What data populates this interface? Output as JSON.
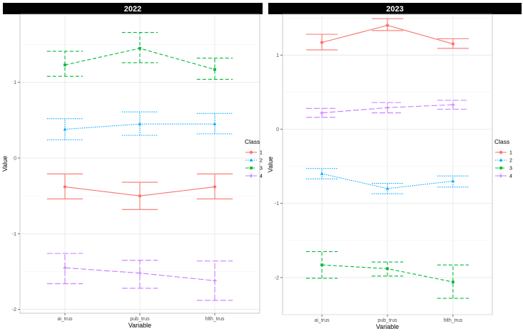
{
  "chart_data": [
    {
      "type": "line",
      "title": "2022",
      "xlabel": "Variable",
      "ylabel": "Value",
      "categories": [
        "ai_trus",
        "pub_trus",
        "hlth_trus"
      ],
      "ylim": [
        -2.05,
        1.9
      ],
      "yticks": [
        -2,
        -1,
        0,
        1
      ],
      "legend": {
        "title": "Class",
        "position": "right"
      },
      "series": [
        {
          "name": "1",
          "color": "#F8766D",
          "dash": "",
          "marker": "circle",
          "values": [
            -0.38,
            -0.5,
            -0.38
          ],
          "lower": [
            -0.54,
            -0.68,
            -0.54
          ],
          "upper": [
            -0.21,
            -0.32,
            -0.21
          ]
        },
        {
          "name": "2",
          "color": "#00A9FF",
          "dash": "1.5,1.5",
          "marker": "triangle",
          "values": [
            0.38,
            0.45,
            0.45
          ],
          "lower": [
            0.24,
            0.3,
            0.32
          ],
          "upper": [
            0.52,
            0.61,
            0.59
          ]
        },
        {
          "name": "3",
          "color": "#00BA38",
          "dash": "5,3",
          "marker": "square",
          "values": [
            1.23,
            1.45,
            1.17
          ],
          "lower": [
            1.08,
            1.26,
            1.04
          ],
          "upper": [
            1.41,
            1.66,
            1.32
          ]
        },
        {
          "name": "4",
          "color": "#C77CFF",
          "dash": "8,3",
          "marker": "plus",
          "values": [
            -1.45,
            -1.52,
            -1.62
          ],
          "lower": [
            -1.66,
            -1.72,
            -1.88
          ],
          "upper": [
            -1.26,
            -1.35,
            -1.36
          ]
        }
      ]
    },
    {
      "type": "line",
      "title": "2023",
      "xlabel": "Variable",
      "ylabel": "Value",
      "categories": [
        "ai_trus",
        "pub_trus",
        "hlth_trus"
      ],
      "ylim": [
        -2.5,
        1.55
      ],
      "yticks": [
        -2,
        -1,
        0,
        1
      ],
      "legend": {
        "title": "Class",
        "position": "right"
      },
      "series": [
        {
          "name": "1",
          "color": "#F8766D",
          "dash": "",
          "marker": "circle",
          "values": [
            1.17,
            1.4,
            1.15
          ],
          "lower": [
            1.07,
            1.33,
            1.09
          ],
          "upper": [
            1.28,
            1.49,
            1.22
          ]
        },
        {
          "name": "2",
          "color": "#00A9FF",
          "dash": "1.5,1.5",
          "marker": "triangle",
          "values": [
            -0.6,
            -0.8,
            -0.7
          ],
          "lower": [
            -0.67,
            -0.87,
            -0.78
          ],
          "upper": [
            -0.53,
            -0.73,
            -0.63
          ]
        },
        {
          "name": "3",
          "color": "#00BA38",
          "dash": "5,3",
          "marker": "square",
          "values": [
            -1.83,
            -1.88,
            -2.06
          ],
          "lower": [
            -2.01,
            -1.98,
            -2.28
          ],
          "upper": [
            -1.65,
            -1.79,
            -1.83
          ]
        },
        {
          "name": "4",
          "color": "#C77CFF",
          "dash": "8,3",
          "marker": "plus",
          "values": [
            0.22,
            0.29,
            0.33
          ],
          "lower": [
            0.16,
            0.22,
            0.27
          ],
          "upper": [
            0.28,
            0.36,
            0.39
          ]
        }
      ]
    }
  ]
}
